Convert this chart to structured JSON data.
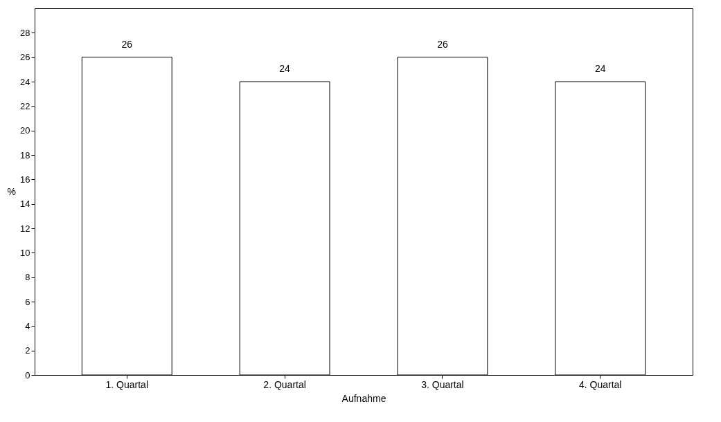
{
  "chart_data": {
    "type": "bar",
    "xlabel": "Aufnahme",
    "ylabel": "%",
    "categories": [
      "1. Quartal",
      "2. Quartal",
      "3. Quartal",
      "4. Quartal"
    ],
    "values": [
      26,
      24,
      26,
      24
    ],
    "color": "#ffffff",
    "ylim": [
      0,
      30
    ],
    "yticks": [
      0,
      2,
      4,
      6,
      8,
      10,
      12,
      14,
      16,
      18,
      20,
      22,
      24,
      26,
      28
    ],
    "grid": false,
    "data_labels": true
  }
}
